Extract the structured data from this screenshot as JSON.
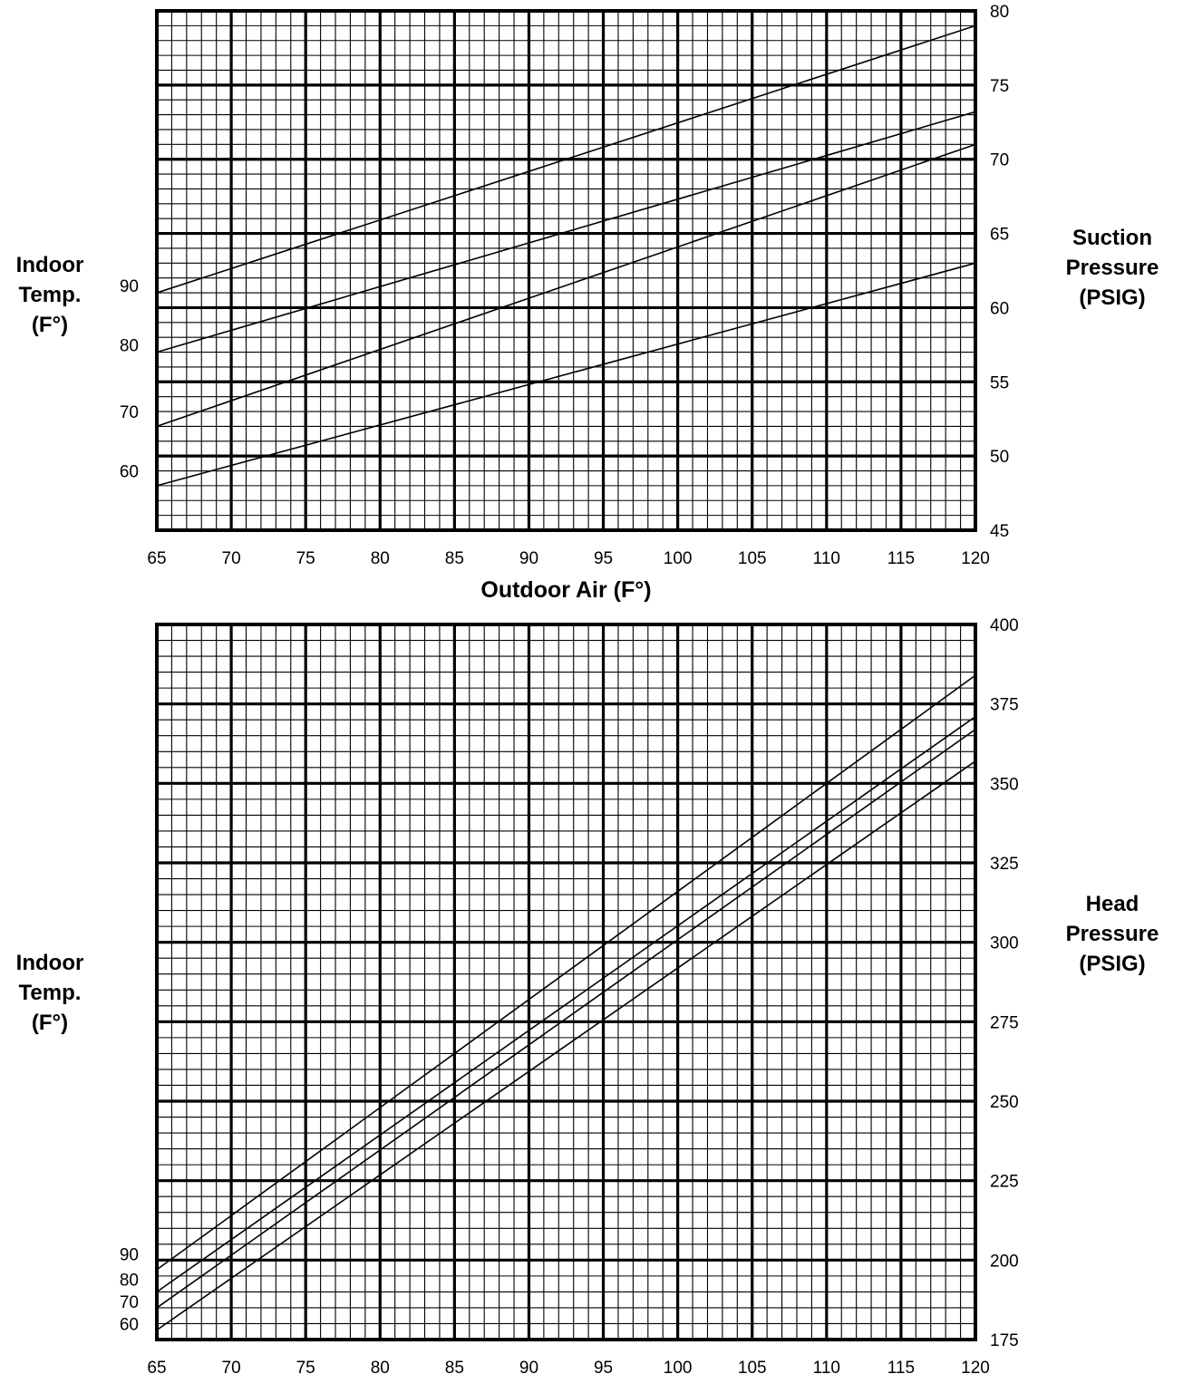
{
  "chart_data": [
    {
      "type": "line",
      "xlabel": "Outdoor Air (F°)",
      "y_left_label": [
        "Indoor",
        "Temp.",
        "(F°)"
      ],
      "y_right_label": [
        "Suction",
        "Pressure",
        "(PSIG)"
      ],
      "xlim": [
        65,
        120
      ],
      "ylim": [
        45,
        80
      ],
      "x_ticks": [
        "65",
        "70",
        "75",
        "80",
        "85",
        "90",
        "95",
        "100",
        "105",
        "110",
        "115",
        "120"
      ],
      "y_ticks": [
        "45",
        "50",
        "55",
        "60",
        "65",
        "70",
        "75",
        "80"
      ],
      "grid": true,
      "grid_style": "major lines every 5 units, fine lines every 1 unit",
      "series": [
        {
          "name": "90",
          "x": [
            65,
            120
          ],
          "y": [
            61.0,
            79.0
          ]
        },
        {
          "name": "80",
          "x": [
            65,
            120
          ],
          "y": [
            57.0,
            73.2
          ]
        },
        {
          "name": "70",
          "x": [
            65,
            120
          ],
          "y": [
            52.0,
            71.0
          ]
        },
        {
          "name": "60",
          "x": [
            65,
            120
          ],
          "y": [
            48.0,
            63.0
          ]
        }
      ]
    },
    {
      "type": "line",
      "xlabel": "Outdoor Air (F°)",
      "y_left_label": [
        "Indoor",
        "Temp.",
        "(F°)"
      ],
      "y_right_label": [
        "Head",
        "Pressure",
        "(PSIG)"
      ],
      "xlim": [
        65,
        120
      ],
      "ylim": [
        175,
        400
      ],
      "x_ticks": [
        "65",
        "70",
        "75",
        "80",
        "85",
        "90",
        "95",
        "100",
        "105",
        "110",
        "115",
        "120"
      ],
      "y_ticks": [
        "175",
        "200",
        "225",
        "250",
        "275",
        "300",
        "325",
        "350",
        "375",
        "400"
      ],
      "grid": true,
      "grid_style": "major lines every 5 units, fine lines every 1 unit",
      "series": [
        {
          "name": "90",
          "x": [
            65,
            120
          ],
          "y": [
            197,
            384
          ]
        },
        {
          "name": "80",
          "x": [
            65,
            120
          ],
          "y": [
            190,
            371
          ]
        },
        {
          "name": "70",
          "x": [
            65,
            120
          ],
          "y": [
            185,
            367
          ]
        },
        {
          "name": "60",
          "x": [
            65,
            120
          ],
          "y": [
            178,
            357
          ]
        }
      ]
    }
  ]
}
